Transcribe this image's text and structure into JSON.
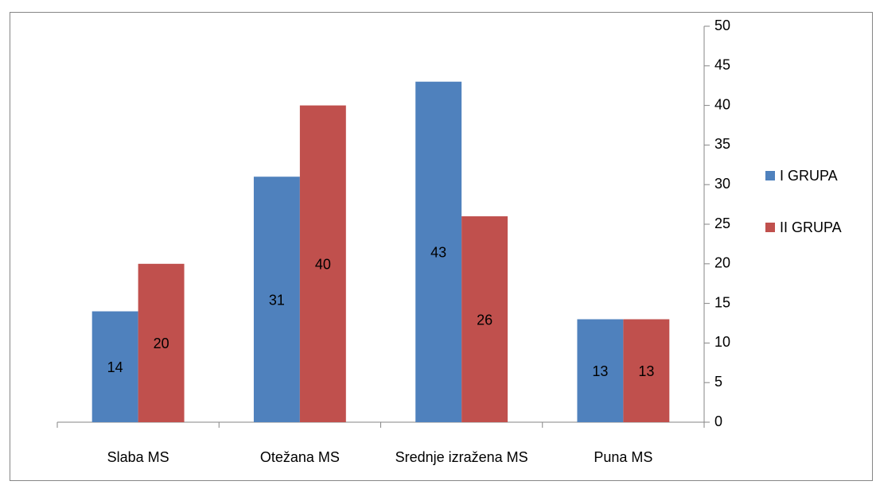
{
  "chart_data": {
    "type": "bar",
    "categories": [
      "Slaba MS",
      "Otežana MS",
      "Srednje izražena  MS",
      "Puna MS"
    ],
    "series": [
      {
        "name": "I GRUPA",
        "color": "#4f81bd",
        "values": [
          14,
          31,
          43,
          13
        ]
      },
      {
        "name": "II GRUPA",
        "color": "#c0504d",
        "values": [
          20,
          40,
          26,
          13
        ]
      }
    ],
    "ylim": [
      0,
      50
    ],
    "yticks": [
      0,
      5,
      10,
      15,
      20,
      25,
      30,
      35,
      40,
      45,
      50
    ],
    "legend": "right",
    "data_labels": true
  }
}
